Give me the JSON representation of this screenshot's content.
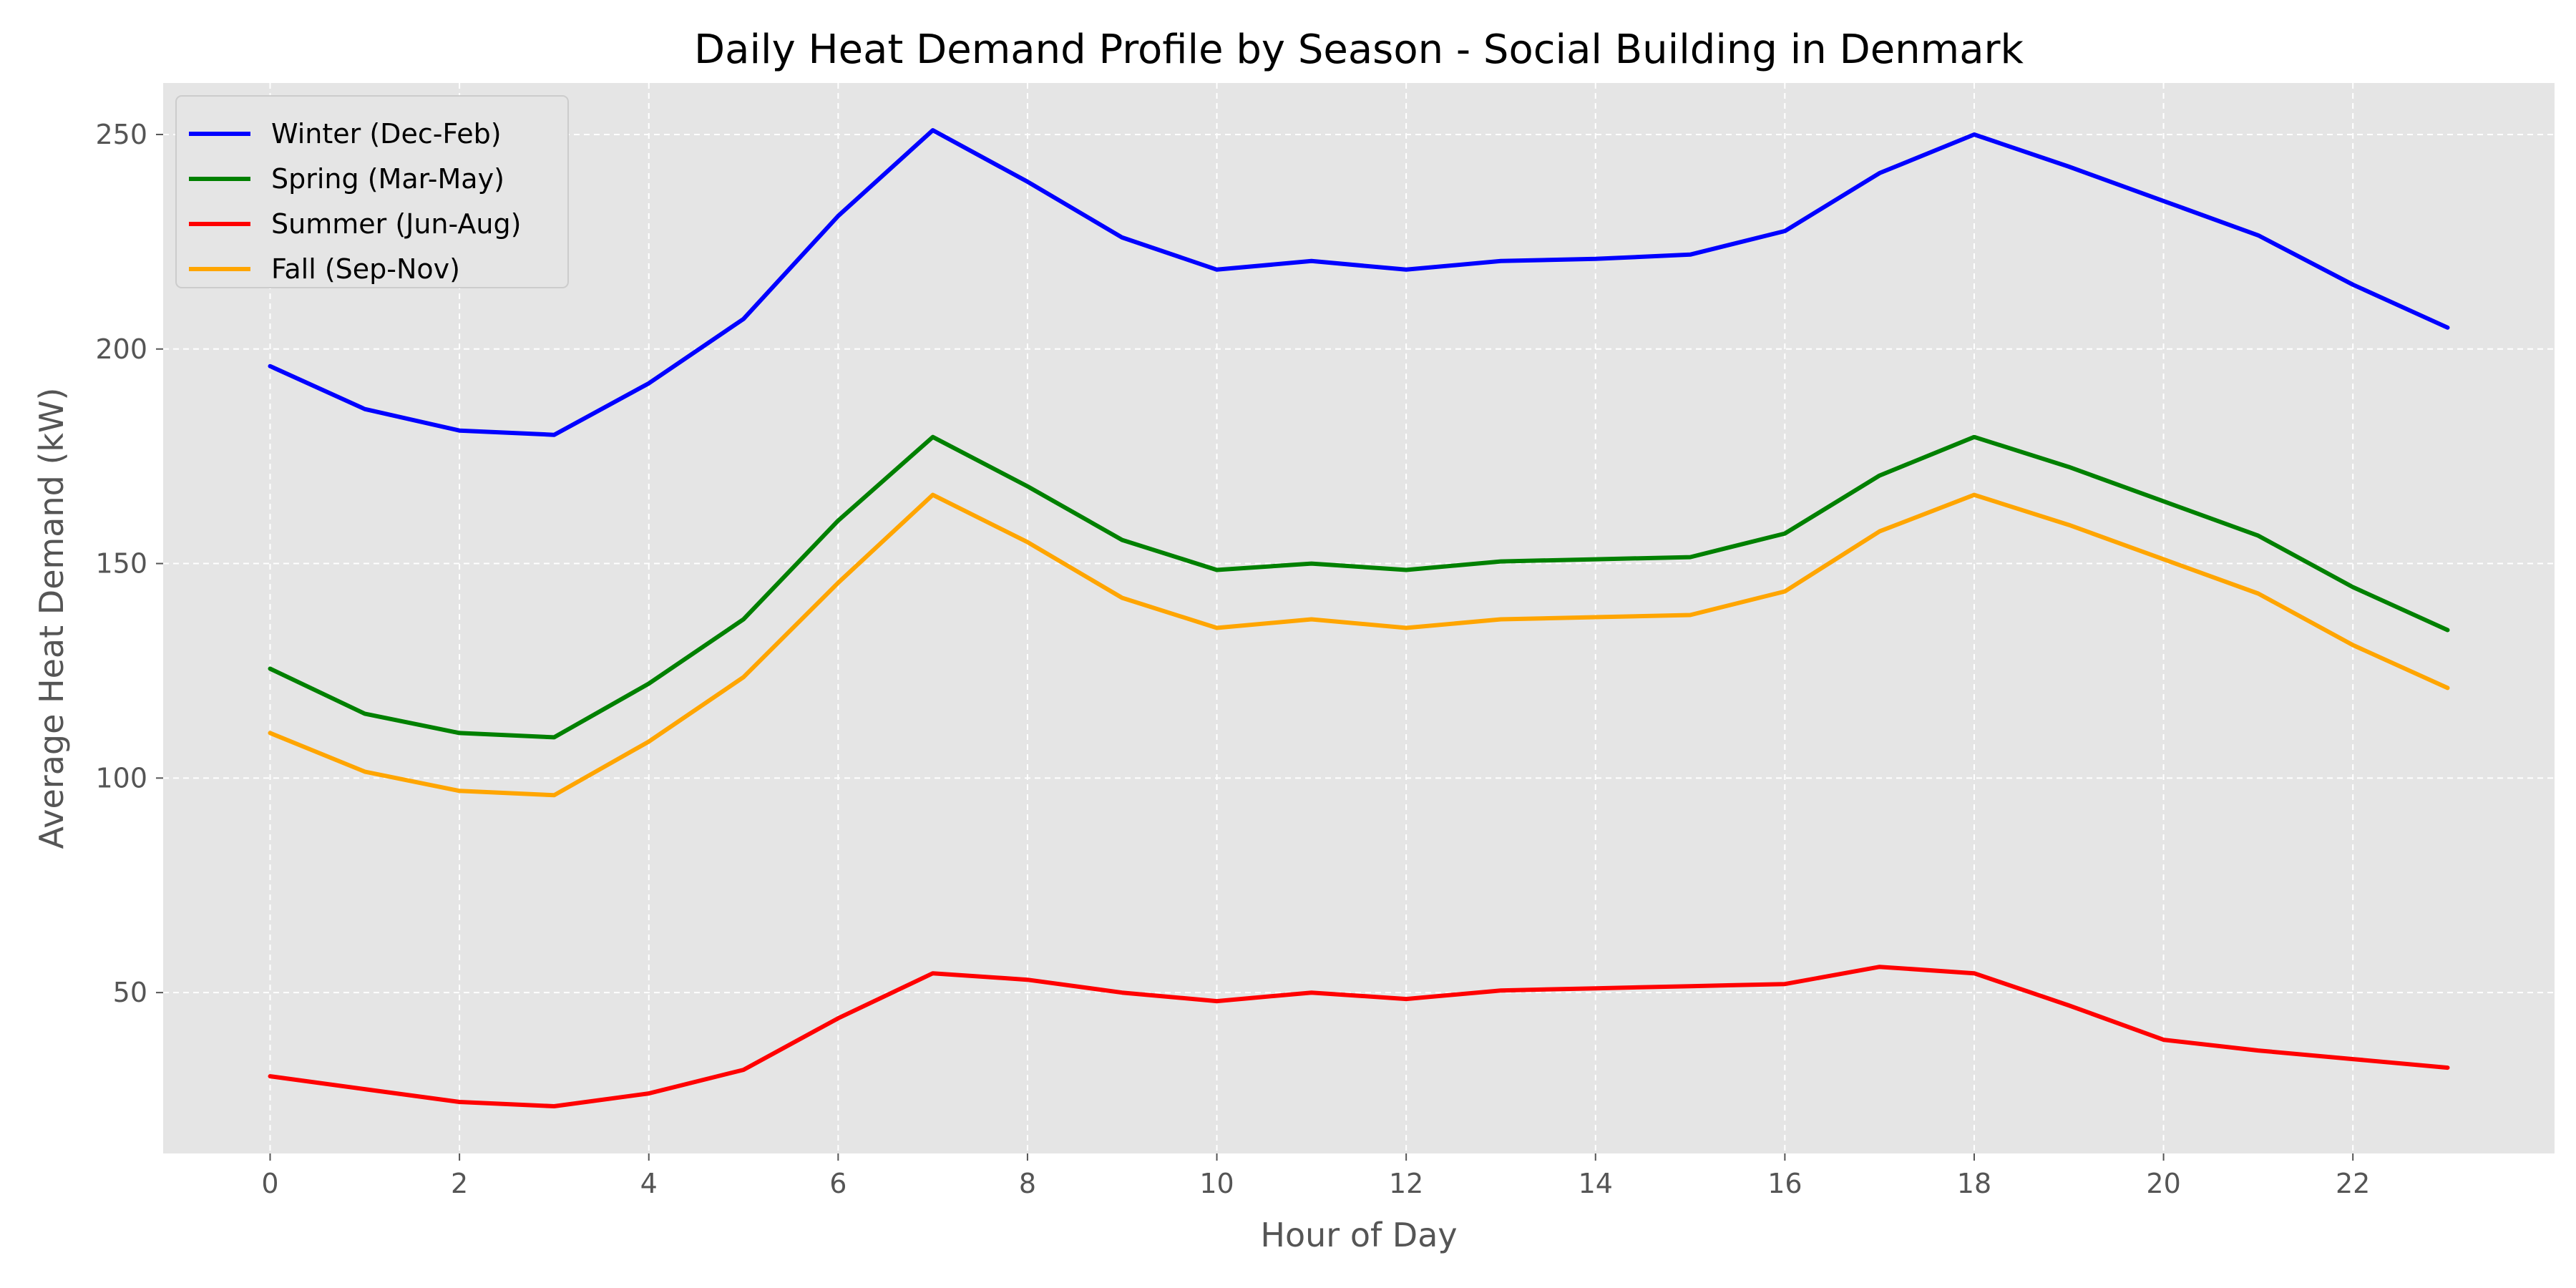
{
  "chart_data": {
    "type": "line",
    "title": "Daily Heat Demand Profile by Season - Social Building in Denmark",
    "xlabel": "Hour of Day",
    "ylabel": "Average Heat Demand (kW)",
    "xlim": [
      -1.13,
      24.13
    ],
    "ylim": [
      12.5,
      262
    ],
    "xticks": [
      0,
      2,
      4,
      6,
      8,
      10,
      12,
      14,
      16,
      18,
      20,
      22
    ],
    "yticks": [
      50,
      100,
      150,
      200,
      250
    ],
    "grid": true,
    "legend_position": "top-left",
    "background_color": "#e5e5e5",
    "x": [
      0,
      1,
      2,
      3,
      4,
      5,
      6,
      7,
      8,
      9,
      10,
      11,
      12,
      13,
      14,
      15,
      16,
      17,
      18,
      19,
      20,
      21,
      22,
      23
    ],
    "series": [
      {
        "name": "Winter (Dec-Feb)",
        "color": "#0000ff",
        "values": [
          196,
          186,
          181,
          180,
          192,
          207,
          231,
          251,
          239,
          226,
          218.5,
          220.5,
          218.5,
          220.5,
          221,
          222,
          227.5,
          241,
          250,
          242.5,
          234.5,
          226.5,
          215,
          205
        ]
      },
      {
        "name": "Spring (Mar-May)",
        "color": "#008000",
        "values": [
          125.5,
          115,
          110.5,
          109.5,
          122,
          137,
          160,
          179.5,
          168,
          155.5,
          148.5,
          150,
          148.5,
          150.5,
          151,
          151.5,
          157,
          170.5,
          179.5,
          172.5,
          164.5,
          156.5,
          144.5,
          134.5
        ]
      },
      {
        "name": "Summer (Jun-Aug)",
        "color": "#ff0000",
        "values": [
          30.5,
          27.5,
          24.5,
          23.5,
          26.5,
          32,
          44,
          54.5,
          53,
          50,
          48,
          50,
          48.5,
          50.5,
          51,
          51.5,
          52,
          56,
          54.5,
          47,
          39,
          36.5,
          34.5,
          32.5
        ]
      },
      {
        "name": "Fall (Sep-Nov)",
        "color": "#ffa500",
        "values": [
          110.5,
          101.5,
          97,
          96,
          108.5,
          123.5,
          145.5,
          166,
          155,
          142,
          135,
          137,
          135,
          137,
          137.5,
          138,
          143.5,
          157.5,
          166,
          159,
          151,
          143,
          131,
          121
        ]
      }
    ]
  }
}
